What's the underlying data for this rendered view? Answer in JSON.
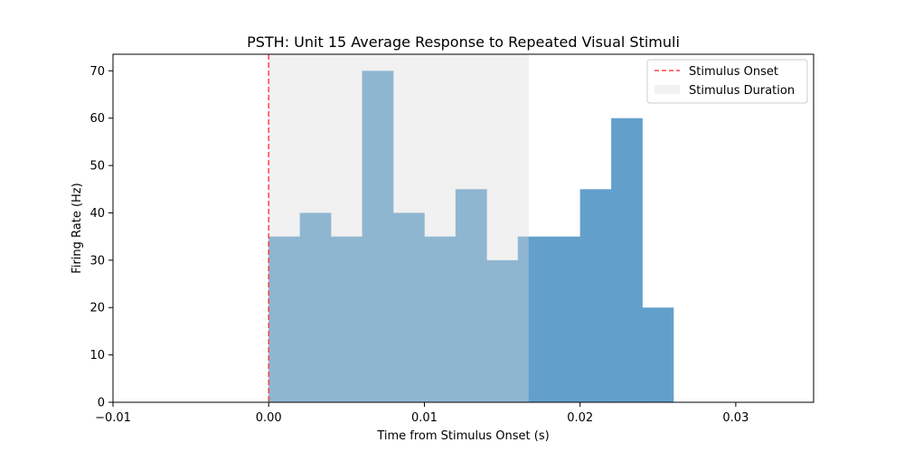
{
  "chart_data": {
    "type": "bar",
    "title": "PSTH: Unit 15 Average Response to Repeated Visual Stimuli",
    "xlabel": "Time from Stimulus Onset (s)",
    "ylabel": "Firing Rate (Hz)",
    "xlim": [
      -0.01,
      0.035
    ],
    "ylim": [
      0,
      73.5
    ],
    "xticks": [
      -0.01,
      0.0,
      0.01,
      0.02,
      0.03
    ],
    "xtick_labels": [
      "−0.01",
      "0.00",
      "0.01",
      "0.02",
      "0.03"
    ],
    "yticks": [
      0,
      10,
      20,
      30,
      40,
      50,
      60,
      70
    ],
    "ytick_labels": [
      "0",
      "10",
      "20",
      "30",
      "40",
      "50",
      "60",
      "70"
    ],
    "bin_width": 0.002,
    "bin_starts": [
      0.0,
      0.002,
      0.004,
      0.006,
      0.008,
      0.01,
      0.012,
      0.014,
      0.016,
      0.018,
      0.02,
      0.022,
      0.024
    ],
    "values": [
      35,
      40,
      35,
      70,
      40,
      35,
      45,
      30,
      35,
      35,
      45,
      60,
      20
    ],
    "bar_color": "#62a0cb",
    "stimulus_onset": 0.0,
    "stimulus_onset_color": "#ff4444",
    "stimulus_duration": [
      0.0,
      0.0167
    ],
    "stimulus_shade_color": "#d9d9d9",
    "legend": {
      "placement": "top-right",
      "entries": [
        {
          "label": "Stimulus Onset",
          "style": "dashed-line"
        },
        {
          "label": "Stimulus Duration",
          "style": "patch"
        }
      ]
    },
    "grid": false
  }
}
